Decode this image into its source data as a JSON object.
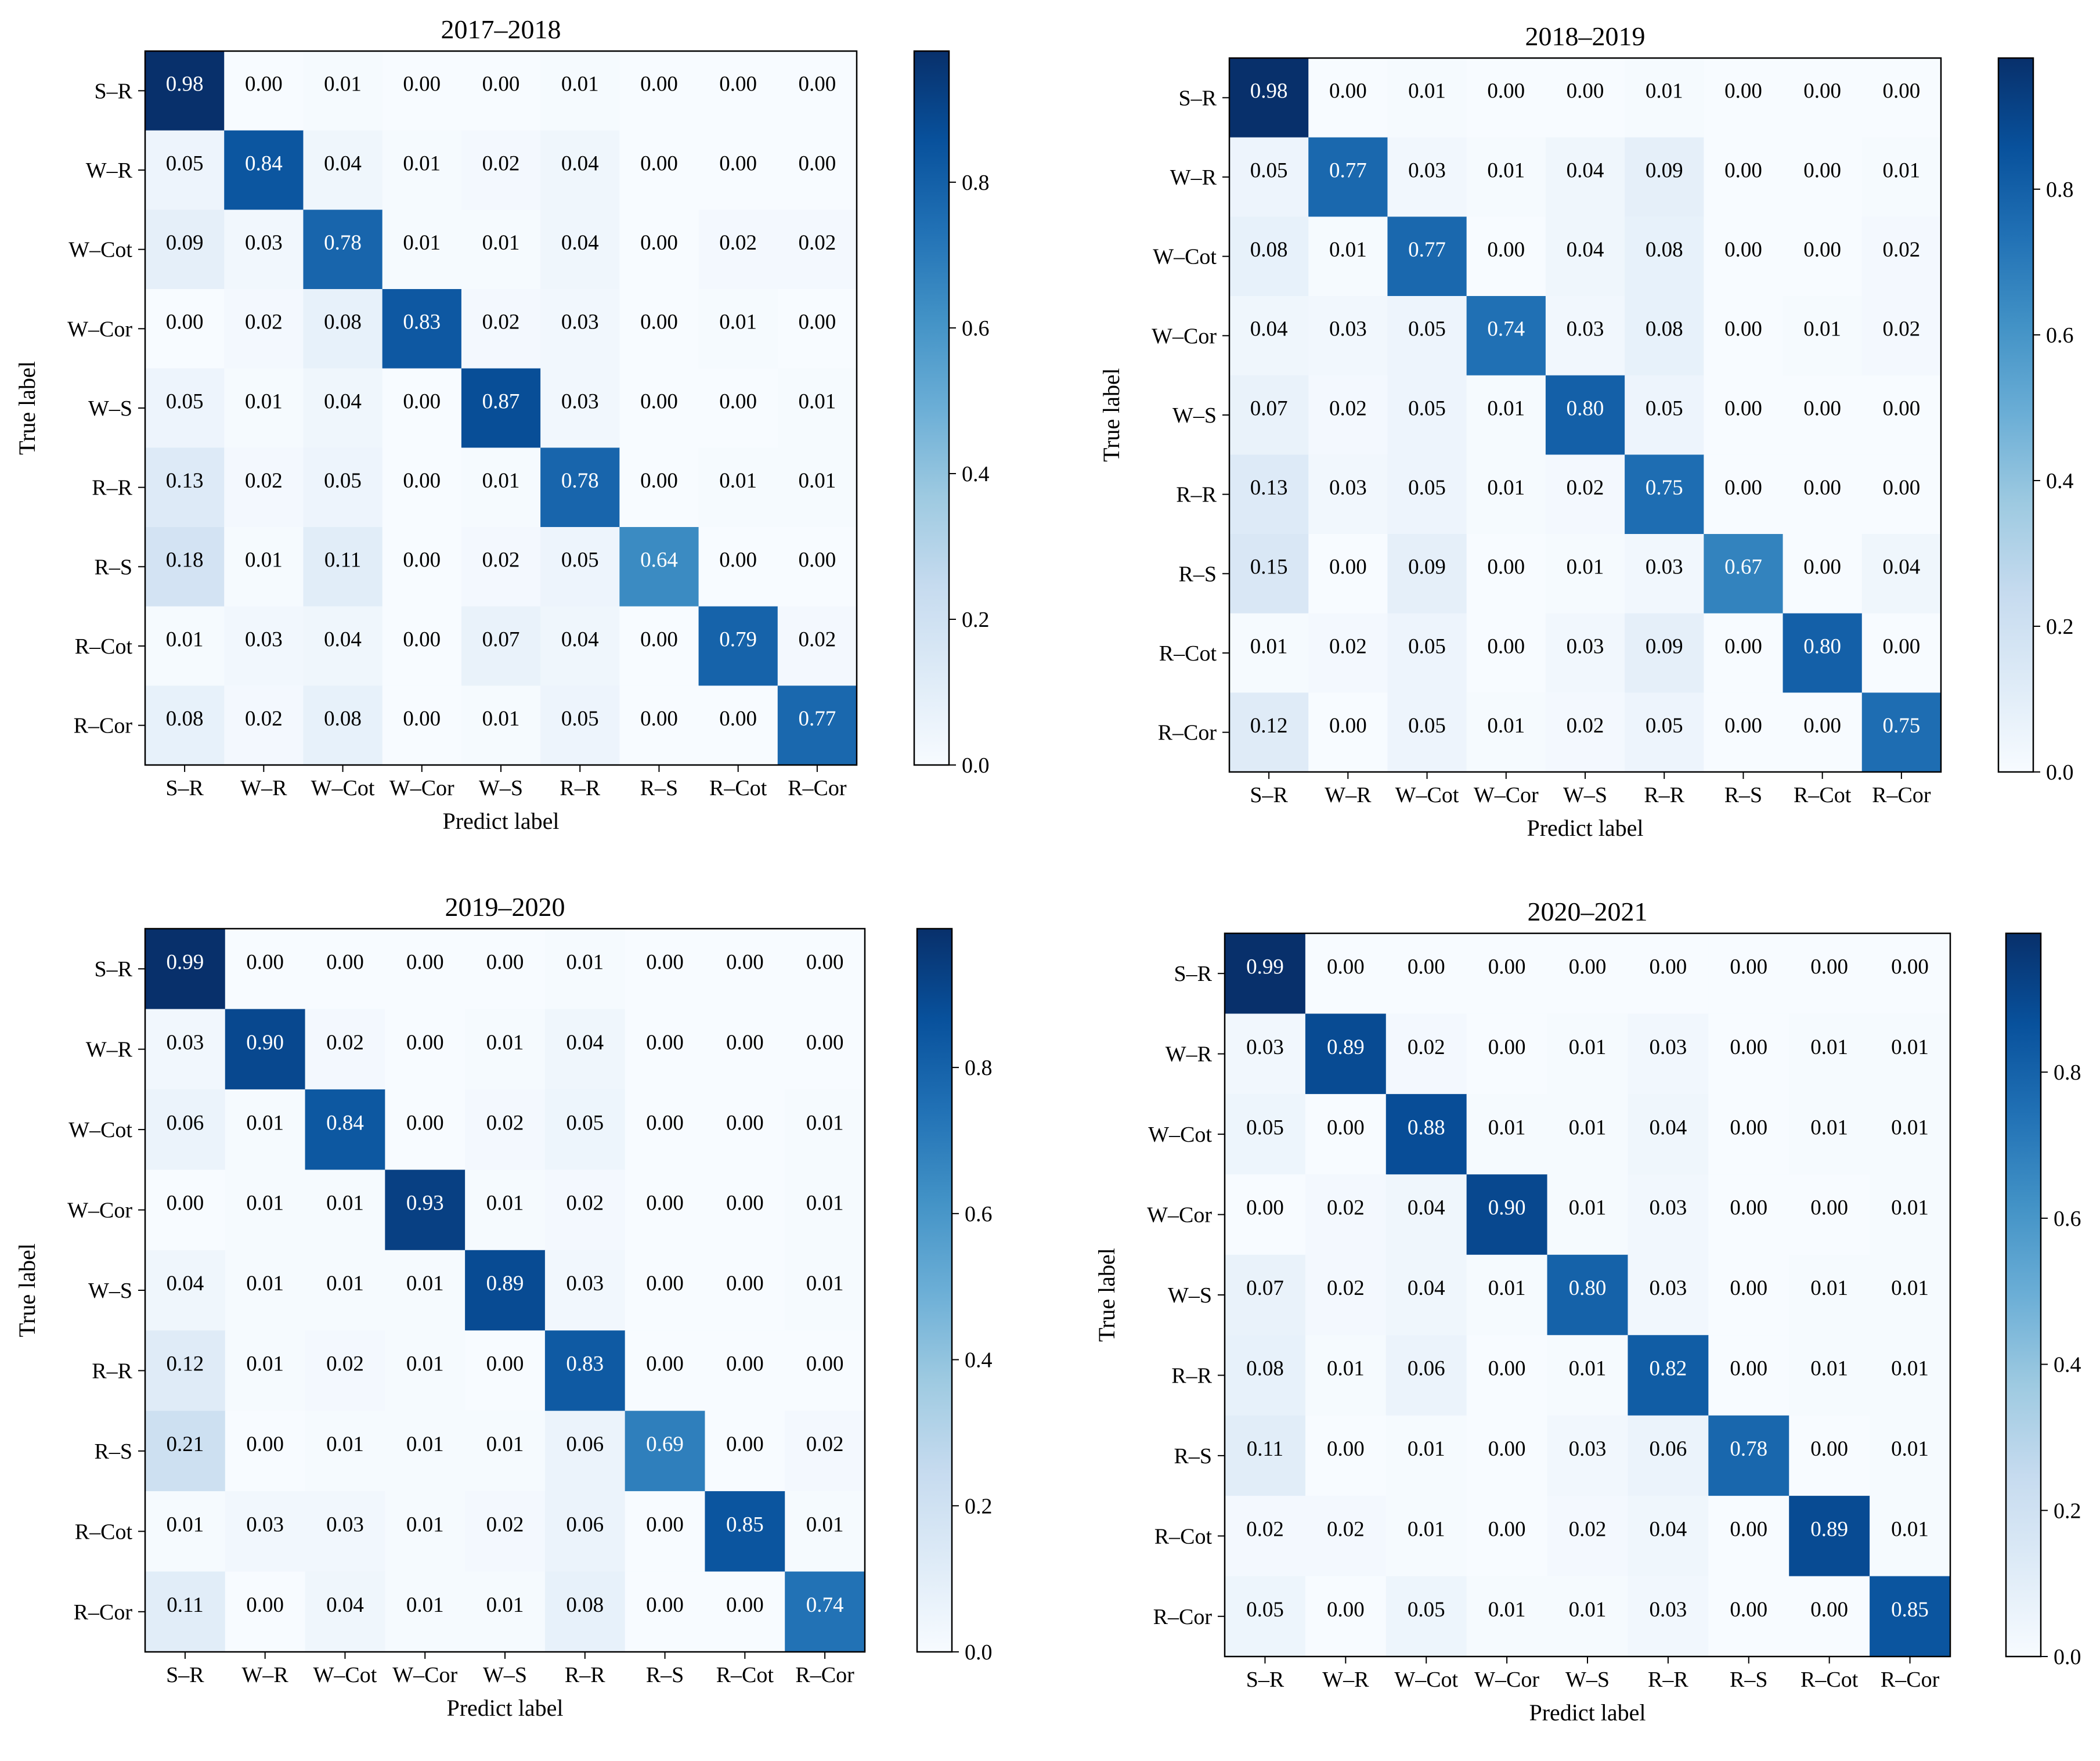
{
  "chart_data": [
    {
      "type": "heatmap",
      "title": "2017–2018",
      "xlabel": "Predict label",
      "ylabel": "True label",
      "categories": [
        "S–R",
        "W–R",
        "W–Cot",
        "W–Cor",
        "W–S",
        "R–R",
        "R–S",
        "R–Cot",
        "R–Cor"
      ],
      "colorbar_ticks": [
        "0.0",
        "0.2",
        "0.4",
        "0.6",
        "0.8"
      ],
      "colorbar_range": [
        0,
        0.98
      ],
      "values": [
        [
          0.98,
          0.0,
          0.01,
          0.0,
          0.0,
          0.01,
          0.0,
          0.0,
          0.0
        ],
        [
          0.05,
          0.84,
          0.04,
          0.01,
          0.02,
          0.04,
          0.0,
          0.0,
          0.0
        ],
        [
          0.09,
          0.03,
          0.78,
          0.01,
          0.01,
          0.04,
          0.0,
          0.02,
          0.02
        ],
        [
          0.0,
          0.02,
          0.08,
          0.83,
          0.02,
          0.03,
          0.0,
          0.01,
          0.0
        ],
        [
          0.05,
          0.01,
          0.04,
          0.0,
          0.87,
          0.03,
          0.0,
          0.0,
          0.01
        ],
        [
          0.13,
          0.02,
          0.05,
          0.0,
          0.01,
          0.78,
          0.0,
          0.01,
          0.01
        ],
        [
          0.18,
          0.01,
          0.11,
          0.0,
          0.02,
          0.05,
          0.64,
          0.0,
          0.0
        ],
        [
          0.01,
          0.03,
          0.04,
          0.0,
          0.07,
          0.04,
          0.0,
          0.79,
          0.02
        ],
        [
          0.08,
          0.02,
          0.08,
          0.0,
          0.01,
          0.05,
          0.0,
          0.0,
          0.77
        ]
      ]
    },
    {
      "type": "heatmap",
      "title": "2018–2019",
      "xlabel": "Predict label",
      "ylabel": "True label",
      "categories": [
        "S–R",
        "W–R",
        "W–Cot",
        "W–Cor",
        "W–S",
        "R–R",
        "R–S",
        "R–Cot",
        "R–Cor"
      ],
      "colorbar_ticks": [
        "0.0",
        "0.2",
        "0.4",
        "0.6",
        "0.8"
      ],
      "colorbar_range": [
        0,
        0.98
      ],
      "values": [
        [
          0.98,
          0.0,
          0.01,
          0.0,
          0.0,
          0.01,
          0.0,
          0.0,
          0.0
        ],
        [
          0.05,
          0.77,
          0.03,
          0.01,
          0.04,
          0.09,
          0.0,
          0.0,
          0.01
        ],
        [
          0.08,
          0.01,
          0.77,
          0.0,
          0.04,
          0.08,
          0.0,
          0.0,
          0.02
        ],
        [
          0.04,
          0.03,
          0.05,
          0.74,
          0.03,
          0.08,
          0.0,
          0.01,
          0.02
        ],
        [
          0.07,
          0.02,
          0.05,
          0.01,
          0.8,
          0.05,
          0.0,
          0.0,
          0.0
        ],
        [
          0.13,
          0.03,
          0.05,
          0.01,
          0.02,
          0.75,
          0.0,
          0.0,
          0.0
        ],
        [
          0.15,
          0.0,
          0.09,
          0.0,
          0.01,
          0.03,
          0.67,
          0.0,
          0.04
        ],
        [
          0.01,
          0.02,
          0.05,
          0.0,
          0.03,
          0.09,
          0.0,
          0.8,
          0.0
        ],
        [
          0.12,
          0.0,
          0.05,
          0.01,
          0.02,
          0.05,
          0.0,
          0.0,
          0.75
        ]
      ]
    },
    {
      "type": "heatmap",
      "title": "2019–2020",
      "xlabel": "Predict label",
      "ylabel": "True label",
      "categories": [
        "S–R",
        "W–R",
        "W–Cot",
        "W–Cor",
        "W–S",
        "R–R",
        "R–S",
        "R–Cot",
        "R–Cor"
      ],
      "colorbar_ticks": [
        "0.0",
        "0.2",
        "0.4",
        "0.6",
        "0.8"
      ],
      "colorbar_range": [
        0,
        0.99
      ],
      "values": [
        [
          0.99,
          0.0,
          0.0,
          0.0,
          0.0,
          0.01,
          0.0,
          0.0,
          0.0
        ],
        [
          0.03,
          0.9,
          0.02,
          0.0,
          0.01,
          0.04,
          0.0,
          0.0,
          0.0
        ],
        [
          0.06,
          0.01,
          0.84,
          0.0,
          0.02,
          0.05,
          0.0,
          0.0,
          0.01
        ],
        [
          0.0,
          0.01,
          0.01,
          0.93,
          0.01,
          0.02,
          0.0,
          0.0,
          0.01
        ],
        [
          0.04,
          0.01,
          0.01,
          0.01,
          0.89,
          0.03,
          0.0,
          0.0,
          0.01
        ],
        [
          0.12,
          0.01,
          0.02,
          0.01,
          0.0,
          0.83,
          0.0,
          0.0,
          0.0
        ],
        [
          0.21,
          0.0,
          0.01,
          0.01,
          0.01,
          0.06,
          0.69,
          0.0,
          0.02
        ],
        [
          0.01,
          0.03,
          0.03,
          0.01,
          0.02,
          0.06,
          0.0,
          0.85,
          0.01
        ],
        [
          0.11,
          0.0,
          0.04,
          0.01,
          0.01,
          0.08,
          0.0,
          0.0,
          0.74
        ]
      ]
    },
    {
      "type": "heatmap",
      "title": "2020–2021",
      "xlabel": "Predict label",
      "ylabel": "True label",
      "categories": [
        "S–R",
        "W–R",
        "W–Cot",
        "W–Cor",
        "W–S",
        "R–R",
        "R–S",
        "R–Cot",
        "R–Cor"
      ],
      "colorbar_ticks": [
        "0.0",
        "0.2",
        "0.4",
        "0.6",
        "0.8"
      ],
      "colorbar_range": [
        0,
        0.99
      ],
      "values": [
        [
          0.99,
          0.0,
          0.0,
          0.0,
          0.0,
          0.0,
          0.0,
          0.0,
          0.0
        ],
        [
          0.03,
          0.89,
          0.02,
          0.0,
          0.01,
          0.03,
          0.0,
          0.01,
          0.01
        ],
        [
          0.05,
          0.0,
          0.88,
          0.01,
          0.01,
          0.04,
          0.0,
          0.01,
          0.01
        ],
        [
          0.0,
          0.02,
          0.04,
          0.9,
          0.01,
          0.03,
          0.0,
          0.0,
          0.01
        ],
        [
          0.07,
          0.02,
          0.04,
          0.01,
          0.8,
          0.03,
          0.0,
          0.01,
          0.01
        ],
        [
          0.08,
          0.01,
          0.06,
          0.0,
          0.01,
          0.82,
          0.0,
          0.01,
          0.01
        ],
        [
          0.11,
          0.0,
          0.01,
          0.0,
          0.03,
          0.06,
          0.78,
          0.0,
          0.01
        ],
        [
          0.02,
          0.02,
          0.01,
          0.0,
          0.02,
          0.04,
          0.0,
          0.89,
          0.01
        ],
        [
          0.05,
          0.0,
          0.05,
          0.01,
          0.01,
          0.03,
          0.0,
          0.0,
          0.85
        ]
      ]
    }
  ]
}
